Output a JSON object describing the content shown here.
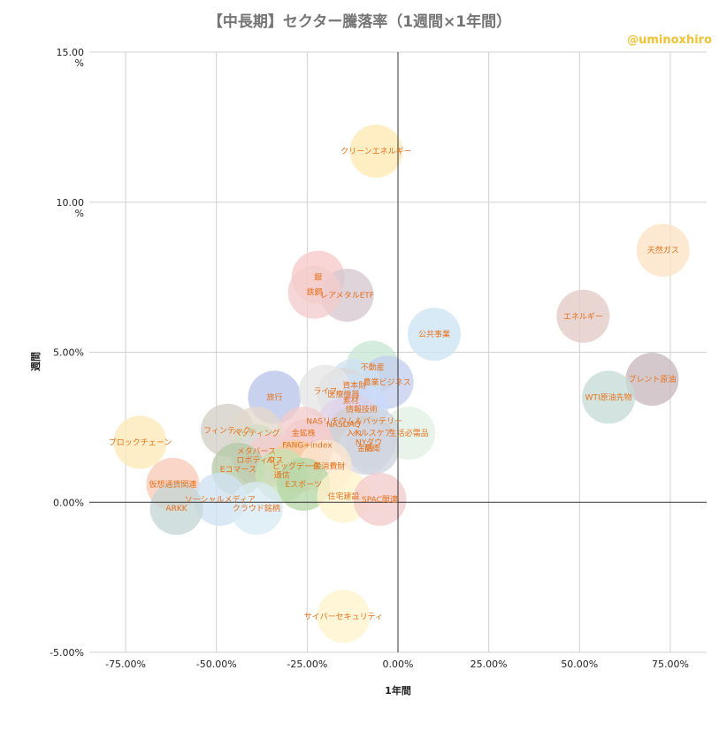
{
  "chart_data": {
    "type": "scatter",
    "title": "【中長期】セクター騰落率（1週間×1年間）",
    "xlabel": "1年間",
    "ylabel": "週間",
    "xlim": [
      -0.85,
      0.85
    ],
    "ylim": [
      -0.05,
      0.15
    ],
    "xticks": [
      {
        "v": -0.75,
        "label": "-75.00%"
      },
      {
        "v": -0.5,
        "label": "-50.00%"
      },
      {
        "v": -0.25,
        "label": "-25.00%"
      },
      {
        "v": 0.0,
        "label": "0.00%"
      },
      {
        "v": 0.25,
        "label": "25.00%"
      },
      {
        "v": 0.5,
        "label": "50.00%"
      },
      {
        "v": 0.75,
        "label": "75.00%"
      }
    ],
    "yticks": [
      {
        "v": 0.15,
        "label": [
          "15.00",
          "%"
        ]
      },
      {
        "v": 0.1,
        "label": [
          "10.00",
          "%"
        ]
      },
      {
        "v": 0.05,
        "label": [
          "5.00%"
        ]
      },
      {
        "v": 0.0,
        "label": [
          "0.00%"
        ]
      },
      {
        "v": -0.05,
        "label": [
          "-5.00%"
        ]
      }
    ],
    "grid": true,
    "points": [
      {
        "name": "クリーンエネルギー",
        "x": -0.06,
        "y": 0.117,
        "color": "#ffe9b3"
      },
      {
        "name": "天然ガス",
        "x": 0.73,
        "y": 0.084,
        "color": "#fde3c4"
      },
      {
        "name": "銀",
        "x": -0.22,
        "y": 0.075,
        "color": "#f9c9c9"
      },
      {
        "name": "レアメタルETF",
        "x": -0.14,
        "y": 0.069,
        "color": "#d5c8cf"
      },
      {
        "name": "鉄鋼",
        "x": -0.23,
        "y": 0.07,
        "color": "#f4cccc"
      },
      {
        "name": "エネルギー",
        "x": 0.51,
        "y": 0.062,
        "color": "#e3c9c5"
      },
      {
        "name": "公共事業",
        "x": 0.1,
        "y": 0.056,
        "color": "#cde4f4"
      },
      {
        "name": "不動産",
        "x": -0.07,
        "y": 0.045,
        "color": "#c6e7d3"
      },
      {
        "name": "ブレント原油",
        "x": 0.7,
        "y": 0.041,
        "color": "#c8b8be"
      },
      {
        "name": "農業ビジネス",
        "x": -0.03,
        "y": 0.04,
        "color": "#c5cff0"
      },
      {
        "name": "資本財",
        "x": -0.12,
        "y": 0.039,
        "color": "#cfe2f3"
      },
      {
        "name": "旅行",
        "x": -0.34,
        "y": 0.035,
        "color": "#b9c4e8"
      },
      {
        "name": "WTI原油先物",
        "x": 0.58,
        "y": 0.035,
        "color": "#c7dbd6"
      },
      {
        "name": "医療機器",
        "x": -0.15,
        "y": 0.036,
        "color": "#d8d8d8"
      },
      {
        "name": "素材",
        "x": -0.13,
        "y": 0.034,
        "color": "#cfe2f3"
      },
      {
        "name": "ライフ",
        "x": -0.2,
        "y": 0.037,
        "color": "#e6e6e6"
      },
      {
        "name": "情報技術",
        "x": -0.1,
        "y": 0.031,
        "color": "#c9daf8"
      },
      {
        "name": "NASリチウム＆バッテリー",
        "x": -0.12,
        "y": 0.027,
        "color": "#d9d2e9"
      },
      {
        "name": "NASDAQ",
        "x": -0.15,
        "y": 0.026,
        "color": "#e1d5ea"
      },
      {
        "name": "生活必需品",
        "x": 0.03,
        "y": 0.023,
        "color": "#e2f0e3"
      },
      {
        "name": "入れ",
        "x": -0.12,
        "y": 0.023,
        "color": "#cfcfcf"
      },
      {
        "name": "ヘルスケア",
        "x": -0.07,
        "y": 0.023,
        "color": "#d0d6e2"
      },
      {
        "name": "金鉱株",
        "x": -0.26,
        "y": 0.023,
        "color": "#f4cccc"
      },
      {
        "name": "フィンテック",
        "x": -0.47,
        "y": 0.024,
        "color": "#d2d0c6"
      },
      {
        "name": "ベッティング",
        "x": -0.39,
        "y": 0.023,
        "color": "#e4d8cc"
      },
      {
        "name": "ブロックチェーン",
        "x": -0.71,
        "y": 0.02,
        "color": "#fde9b8"
      },
      {
        "name": "FANG+index",
        "x": -0.25,
        "y": 0.019,
        "color": "#f4cccc"
      },
      {
        "name": "NYダウ",
        "x": -0.08,
        "y": 0.02,
        "color": "#cfcfcf"
      },
      {
        "name": "金融",
        "x": -0.09,
        "y": 0.018,
        "color": "#d5dbe5"
      },
      {
        "name": "防衛",
        "x": -0.07,
        "y": 0.018,
        "color": "#cfd5e0"
      },
      {
        "name": "メタバース",
        "x": -0.39,
        "y": 0.017,
        "color": "#d3dcc8"
      },
      {
        "name": "ロボティクス",
        "x": -0.38,
        "y": 0.014,
        "color": "#dcdcdc"
      },
      {
        "name": "AI",
        "x": -0.35,
        "y": 0.014,
        "color": "#f4cccc"
      },
      {
        "name": "ビッグデータ",
        "x": -0.28,
        "y": 0.012,
        "color": "#f9cb9c"
      },
      {
        "name": "一般消費財",
        "x": -0.2,
        "y": 0.012,
        "color": "#fce5cd"
      },
      {
        "name": "Eコマース",
        "x": -0.44,
        "y": 0.011,
        "color": "#b7c9a8"
      },
      {
        "name": "通信",
        "x": -0.32,
        "y": 0.009,
        "color": "#c6e0b4"
      },
      {
        "name": "Eスポーツ",
        "x": -0.26,
        "y": 0.006,
        "color": "#b6d7a8"
      },
      {
        "name": "仮想通貨関連",
        "x": -0.62,
        "y": 0.006,
        "color": "#f9cbb8"
      },
      {
        "name": "住宅建設",
        "x": -0.15,
        "y": 0.002,
        "color": "#fff2cc"
      },
      {
        "name": "SPAC関連",
        "x": -0.05,
        "y": 0.001,
        "color": "#f4cccc"
      },
      {
        "name": "ソーシャルメディア",
        "x": -0.49,
        "y": 0.001,
        "color": "#cfe2f3"
      },
      {
        "name": "ARKK",
        "x": -0.61,
        "y": -0.002,
        "color": "#c5d6d6"
      },
      {
        "name": "クラウド銘柄",
        "x": -0.39,
        "y": -0.002,
        "color": "#d9eaf3"
      },
      {
        "name": "サイバーセキュリティ",
        "x": -0.15,
        "y": -0.038,
        "color": "#fff2cc"
      }
    ]
  },
  "watermark": "@uminoxhiro"
}
